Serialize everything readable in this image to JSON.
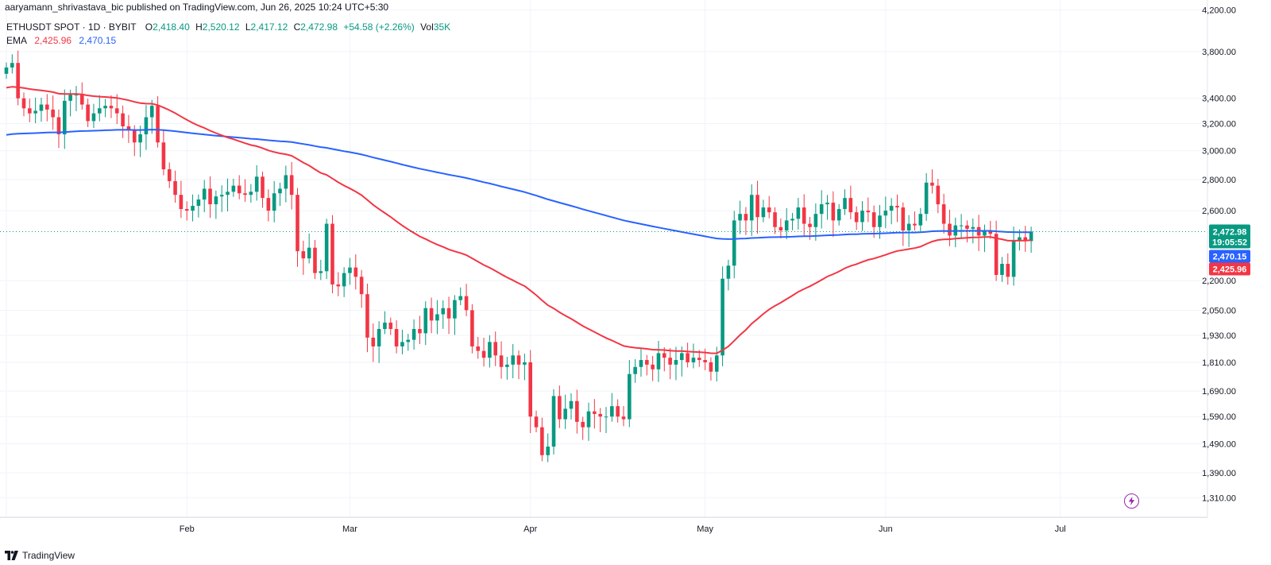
{
  "header": {
    "published": "aaryamann_shrivastava_bic published on TradingView.com, Jun 26, 2025 10:24 UTC+5:30"
  },
  "legend": {
    "symbol": "ETHUSDT SPOT · 1D · BYBIT",
    "o_label": "O",
    "o_value": "2,418.40",
    "h_label": "H",
    "h_value": "2,520.12",
    "l_label": "L",
    "l_value": "2,417.12",
    "c_label": "C",
    "c_value": "2,472.98",
    "change": "+54.58 (+2.26%)",
    "vol_label": "Vol",
    "vol_value": "35K",
    "ema_label": "EMA",
    "ema1": "2,425.96",
    "ema2": "2,470.15"
  },
  "price_tags": {
    "last_price": "2,472.98",
    "countdown": "19:05:52",
    "ema_slow": "2,470.15",
    "ema_fast": "2,425.96"
  },
  "footer": {
    "brand": "TradingView"
  },
  "colors": {
    "up": "#089981",
    "down": "#f23645",
    "ema_fast": "#f23645",
    "ema_slow": "#2962ff",
    "grid": "#f0f3fa",
    "flash_icon": "#9c27b0"
  },
  "icons": [
    "tradingview-logo-icon",
    "flash-icon"
  ],
  "chart_data": {
    "type": "candlestick",
    "scale": "log",
    "ylim": [
      1250,
      4300
    ],
    "y_ticks": [
      {
        "v": 1310,
        "label": "1,310.00"
      },
      {
        "v": 1390,
        "label": "1,390.00"
      },
      {
        "v": 1490,
        "label": "1,490.00"
      },
      {
        "v": 1590,
        "label": "1,590.00"
      },
      {
        "v": 1690,
        "label": "1,690.00"
      },
      {
        "v": 1810,
        "label": "1,810.00"
      },
      {
        "v": 1930,
        "label": "1,930.00"
      },
      {
        "v": 2050,
        "label": "2,050.00"
      },
      {
        "v": 2200,
        "label": "2,200.00"
      },
      {
        "v": 2600,
        "label": "2,600.00"
      },
      {
        "v": 2800,
        "label": "2,800.00"
      },
      {
        "v": 3000,
        "label": "3,000.00"
      },
      {
        "v": 3200,
        "label": "3,200.00"
      },
      {
        "v": 3400,
        "label": "3,400.00"
      },
      {
        "v": 3800,
        "label": "3,800.00"
      },
      {
        "v": 4200,
        "label": "4,200.00"
      }
    ],
    "x_range_days": [
      0,
      188
    ],
    "x_ticks": [
      {
        "day": 0,
        "label": ""
      },
      {
        "day": 31,
        "label": "Feb"
      },
      {
        "day": 59,
        "label": "Mar"
      },
      {
        "day": 90,
        "label": "Apr"
      },
      {
        "day": 120,
        "label": "May"
      },
      {
        "day": 151,
        "label": "Jun"
      },
      {
        "day": 181,
        "label": "Jul"
      }
    ],
    "candles_start_day": 0,
    "closes": [
      3660,
      3700,
      3400,
      3320,
      3280,
      3300,
      3350,
      3310,
      3250,
      3120,
      3380,
      3430,
      3430,
      3350,
      3220,
      3280,
      3320,
      3340,
      3320,
      3280,
      3180,
      3150,
      3060,
      3120,
      3250,
      3340,
      3060,
      2870,
      2790,
      2700,
      2610,
      2600,
      2630,
      2670,
      2740,
      2640,
      2690,
      2700,
      2720,
      2760,
      2710,
      2700,
      2720,
      2820,
      2680,
      2600,
      2710,
      2740,
      2830,
      2700,
      2360,
      2320,
      2380,
      2240,
      2250,
      2520,
      2180,
      2170,
      2240,
      2270,
      2220,
      2130,
      1920,
      1880,
      1960,
      1990,
      1960,
      1880,
      1900,
      1910,
      1960,
      1940,
      2060,
      2000,
      2030,
      2060,
      2010,
      2100,
      2120,
      2050,
      1880,
      1860,
      1830,
      1900,
      1840,
      1790,
      1800,
      1840,
      1800,
      1810,
      1590,
      1550,
      1450,
      1480,
      1670,
      1580,
      1620,
      1650,
      1570,
      1550,
      1610,
      1600,
      1590,
      1590,
      1630,
      1590,
      1580,
      1760,
      1790,
      1820,
      1800,
      1780,
      1850,
      1830,
      1800,
      1820,
      1850,
      1810,
      1830,
      1820,
      1810,
      1770,
      1840,
      2210,
      2280,
      2540,
      2580,
      2540,
      2700,
      2560,
      2620,
      2590,
      2500,
      2480,
      2540,
      2550,
      2620,
      2520,
      2500,
      2580,
      2640,
      2650,
      2540,
      2610,
      2680,
      2590,
      2530,
      2600,
      2590,
      2500,
      2570,
      2600,
      2630,
      2620,
      2480,
      2520,
      2510,
      2580,
      2780,
      2760,
      2640,
      2520,
      2450,
      2510,
      2510,
      2490,
      2500,
      2450,
      2480,
      2460,
      2230,
      2290,
      2220,
      2420,
      2440,
      2418,
      2473
    ],
    "ema_fast": {
      "name": "EMA",
      "value_label": "2,425.96"
    },
    "ema_slow": {
      "name": "EMA",
      "value_label": "2,470.15"
    }
  }
}
